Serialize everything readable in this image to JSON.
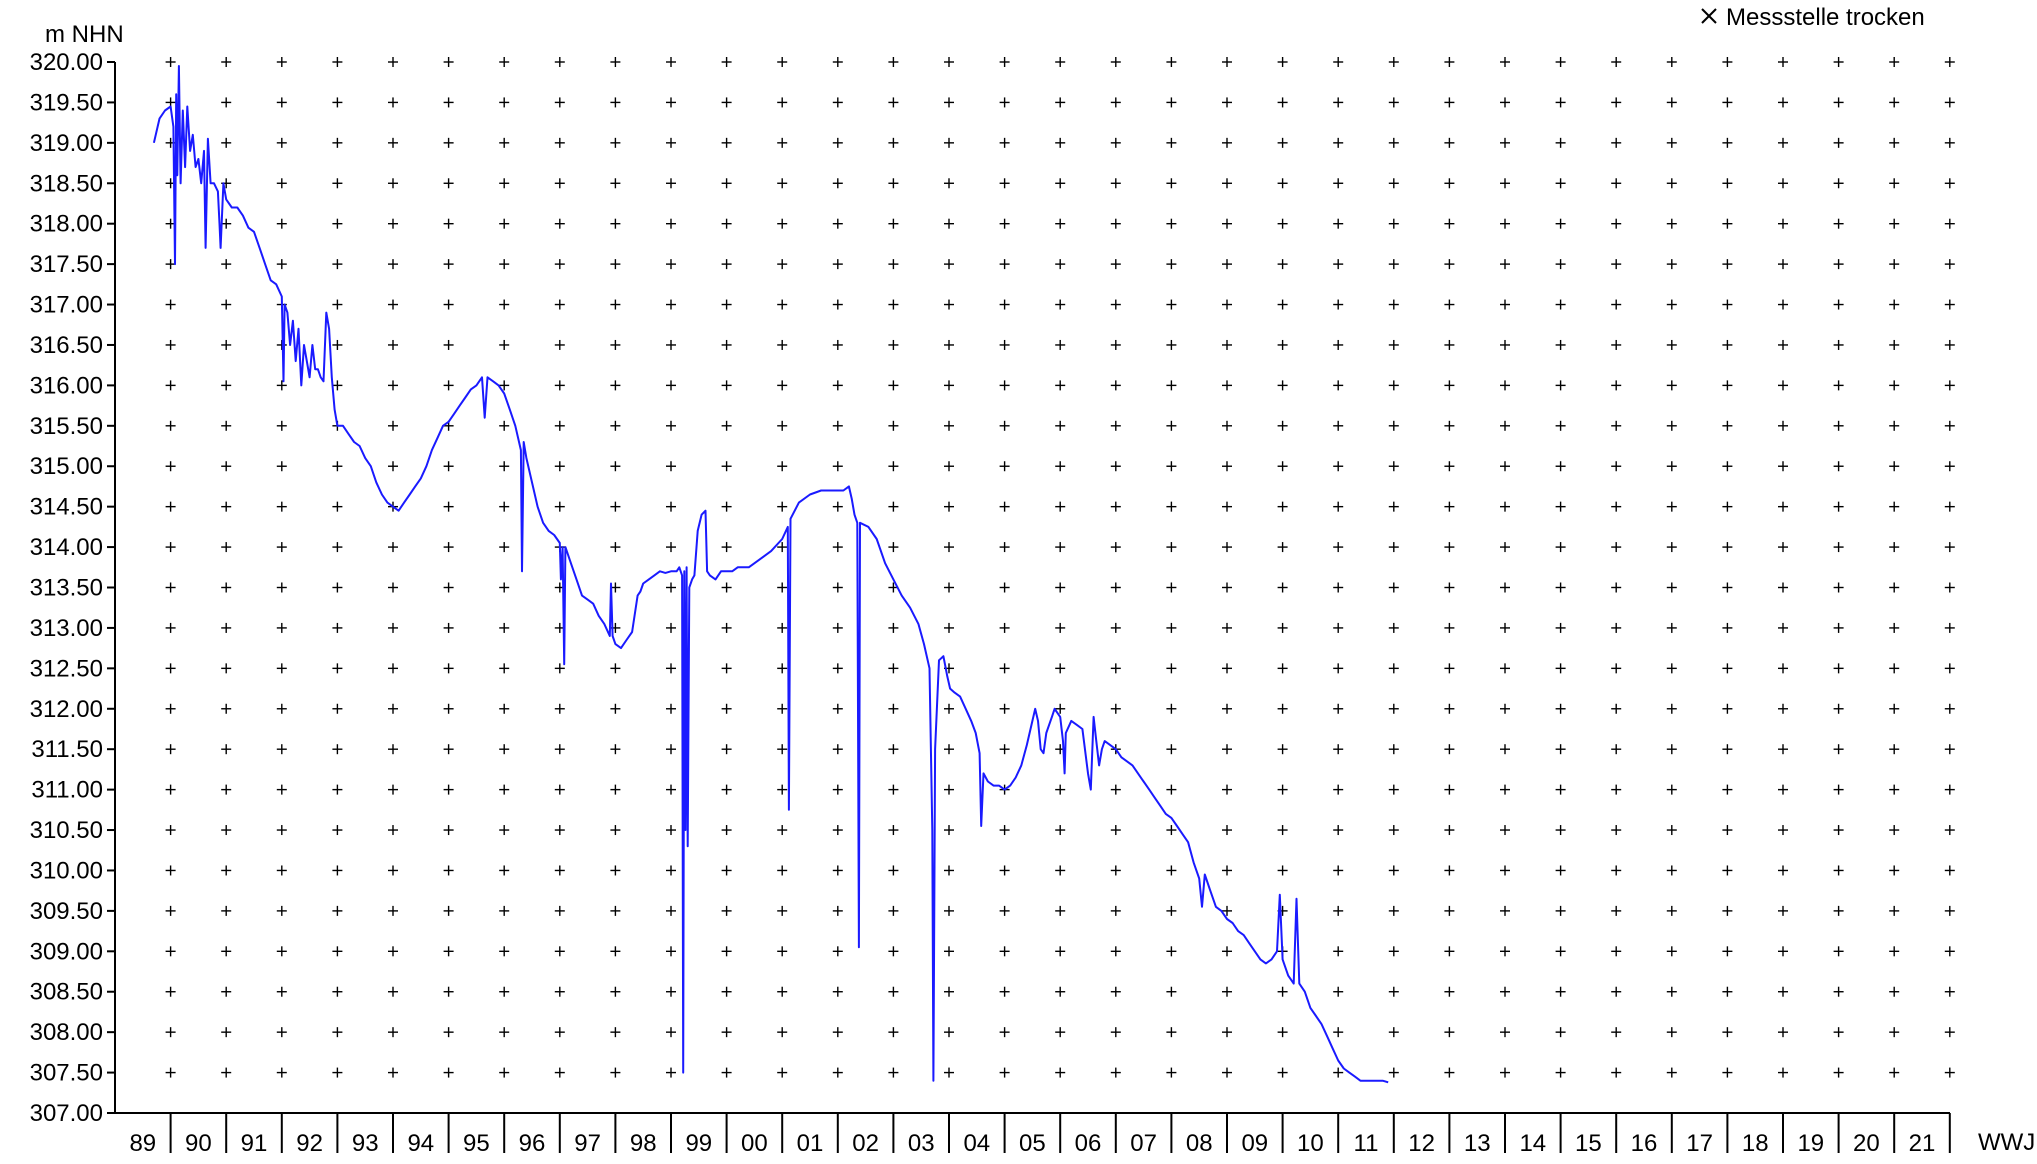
{
  "chart_data": {
    "type": "line",
    "ylabel": "m NHN",
    "xlabel": "WWJ",
    "ylim": [
      307.0,
      320.0
    ],
    "xlim": [
      1989,
      2022
    ],
    "y_ticks": [
      "307.00",
      "307.50",
      "308.00",
      "308.50",
      "309.00",
      "309.50",
      "310.00",
      "310.50",
      "311.00",
      "311.50",
      "312.00",
      "312.50",
      "313.00",
      "313.50",
      "314.00",
      "314.50",
      "315.00",
      "315.50",
      "316.00",
      "316.50",
      "317.00",
      "317.50",
      "318.00",
      "318.50",
      "319.00",
      "319.50",
      "320.00"
    ],
    "x_ticks": [
      "89",
      "90",
      "91",
      "92",
      "93",
      "94",
      "95",
      "96",
      "97",
      "98",
      "99",
      "00",
      "01",
      "02",
      "03",
      "04",
      "05",
      "06",
      "07",
      "08",
      "09",
      "10",
      "11",
      "12",
      "13",
      "14",
      "15",
      "16",
      "17",
      "18",
      "19",
      "20",
      "21"
    ],
    "grid": "plus-markers",
    "legend": {
      "position": "top-right",
      "label": "Messstelle trocken",
      "marker": "x"
    },
    "colors": {
      "series": "#1a1aff",
      "axis": "#000000",
      "grid": "#000000"
    },
    "series": [
      {
        "points": [
          [
            1989.7,
            319.0
          ],
          [
            1989.8,
            319.3
          ],
          [
            1989.9,
            319.4
          ],
          [
            1990.0,
            319.45
          ],
          [
            1990.05,
            319.2
          ],
          [
            1990.08,
            317.5
          ],
          [
            1990.1,
            319.6
          ],
          [
            1990.12,
            318.6
          ],
          [
            1990.15,
            319.95
          ],
          [
            1990.18,
            318.5
          ],
          [
            1990.22,
            319.4
          ],
          [
            1990.26,
            318.7
          ],
          [
            1990.3,
            319.45
          ],
          [
            1990.35,
            318.9
          ],
          [
            1990.4,
            319.1
          ],
          [
            1990.45,
            318.7
          ],
          [
            1990.5,
            318.8
          ],
          [
            1990.55,
            318.5
          ],
          [
            1990.6,
            318.9
          ],
          [
            1990.63,
            317.7
          ],
          [
            1990.67,
            319.05
          ],
          [
            1990.72,
            318.5
          ],
          [
            1990.78,
            318.5
          ],
          [
            1990.85,
            318.4
          ],
          [
            1990.88,
            318.0
          ],
          [
            1990.9,
            317.7
          ],
          [
            1990.95,
            318.5
          ],
          [
            1991.0,
            318.3
          ],
          [
            1991.1,
            318.2
          ],
          [
            1991.2,
            318.2
          ],
          [
            1991.3,
            318.1
          ],
          [
            1991.4,
            317.95
          ],
          [
            1991.5,
            317.9
          ],
          [
            1991.6,
            317.7
          ],
          [
            1991.7,
            317.5
          ],
          [
            1991.8,
            317.3
          ],
          [
            1991.9,
            317.25
          ],
          [
            1992.0,
            317.1
          ],
          [
            1992.03,
            316.05
          ],
          [
            1992.05,
            317.0
          ],
          [
            1992.1,
            316.9
          ],
          [
            1992.15,
            316.5
          ],
          [
            1992.2,
            316.8
          ],
          [
            1992.25,
            316.3
          ],
          [
            1992.3,
            316.7
          ],
          [
            1992.35,
            316.0
          ],
          [
            1992.4,
            316.5
          ],
          [
            1992.45,
            316.3
          ],
          [
            1992.5,
            316.1
          ],
          [
            1992.55,
            316.5
          ],
          [
            1992.6,
            316.2
          ],
          [
            1992.65,
            316.2
          ],
          [
            1992.7,
            316.1
          ],
          [
            1992.75,
            316.05
          ],
          [
            1992.8,
            316.9
          ],
          [
            1992.85,
            316.7
          ],
          [
            1992.9,
            316.1
          ],
          [
            1992.95,
            315.7
          ],
          [
            1993.0,
            315.5
          ],
          [
            1993.1,
            315.5
          ],
          [
            1993.2,
            315.4
          ],
          [
            1993.3,
            315.3
          ],
          [
            1993.4,
            315.25
          ],
          [
            1993.5,
            315.1
          ],
          [
            1993.6,
            315.0
          ],
          [
            1993.7,
            314.8
          ],
          [
            1993.8,
            314.65
          ],
          [
            1993.9,
            314.55
          ],
          [
            1994.0,
            314.5
          ],
          [
            1994.1,
            314.45
          ],
          [
            1994.2,
            314.55
          ],
          [
            1994.3,
            314.65
          ],
          [
            1994.4,
            314.75
          ],
          [
            1994.5,
            314.85
          ],
          [
            1994.6,
            315.0
          ],
          [
            1994.7,
            315.2
          ],
          [
            1994.8,
            315.35
          ],
          [
            1994.9,
            315.5
          ],
          [
            1995.0,
            315.55
          ],
          [
            1995.1,
            315.65
          ],
          [
            1995.2,
            315.75
          ],
          [
            1995.3,
            315.85
          ],
          [
            1995.4,
            315.95
          ],
          [
            1995.5,
            316.0
          ],
          [
            1995.6,
            316.1
          ],
          [
            1995.65,
            315.6
          ],
          [
            1995.7,
            316.1
          ],
          [
            1995.8,
            316.05
          ],
          [
            1995.9,
            316.0
          ],
          [
            1996.0,
            315.9
          ],
          [
            1996.1,
            315.7
          ],
          [
            1996.2,
            315.5
          ],
          [
            1996.3,
            315.2
          ],
          [
            1996.32,
            313.7
          ],
          [
            1996.35,
            315.3
          ],
          [
            1996.4,
            315.1
          ],
          [
            1996.5,
            314.8
          ],
          [
            1996.6,
            314.5
          ],
          [
            1996.7,
            314.3
          ],
          [
            1996.8,
            314.2
          ],
          [
            1996.9,
            314.15
          ],
          [
            1997.0,
            314.05
          ],
          [
            1997.02,
            313.6
          ],
          [
            1997.05,
            314.0
          ],
          [
            1997.08,
            312.55
          ],
          [
            1997.1,
            314.0
          ],
          [
            1997.2,
            313.8
          ],
          [
            1997.3,
            313.6
          ],
          [
            1997.4,
            313.4
          ],
          [
            1997.5,
            313.35
          ],
          [
            1997.6,
            313.3
          ],
          [
            1997.7,
            313.15
          ],
          [
            1997.8,
            313.05
          ],
          [
            1997.9,
            312.9
          ],
          [
            1997.92,
            313.55
          ],
          [
            1997.95,
            312.9
          ],
          [
            1998.0,
            312.8
          ],
          [
            1998.1,
            312.75
          ],
          [
            1998.2,
            312.85
          ],
          [
            1998.3,
            312.95
          ],
          [
            1998.4,
            313.4
          ],
          [
            1998.45,
            313.45
          ],
          [
            1998.5,
            313.55
          ],
          [
            1998.6,
            313.6
          ],
          [
            1998.7,
            313.65
          ],
          [
            1998.8,
            313.7
          ],
          [
            1998.9,
            313.68
          ],
          [
            1999.0,
            313.7
          ],
          [
            1999.1,
            313.7
          ],
          [
            1999.15,
            313.75
          ],
          [
            1999.2,
            313.65
          ],
          [
            1999.22,
            307.5
          ],
          [
            1999.24,
            313.7
          ],
          [
            1999.26,
            310.5
          ],
          [
            1999.28,
            313.75
          ],
          [
            1999.3,
            310.3
          ],
          [
            1999.33,
            313.5
          ],
          [
            1999.38,
            313.6
          ],
          [
            1999.42,
            313.65
          ],
          [
            1999.48,
            314.2
          ],
          [
            1999.55,
            314.4
          ],
          [
            1999.62,
            314.45
          ],
          [
            1999.65,
            313.7
          ],
          [
            1999.7,
            313.65
          ],
          [
            1999.8,
            313.6
          ],
          [
            1999.9,
            313.7
          ],
          [
            2000.0,
            313.7
          ],
          [
            2000.1,
            313.7
          ],
          [
            2000.2,
            313.75
          ],
          [
            2000.4,
            313.75
          ],
          [
            2000.6,
            313.85
          ],
          [
            2000.8,
            313.95
          ],
          [
            2001.0,
            314.1
          ],
          [
            2001.1,
            314.25
          ],
          [
            2001.12,
            310.75
          ],
          [
            2001.15,
            314.35
          ],
          [
            2001.3,
            314.55
          ],
          [
            2001.5,
            314.65
          ],
          [
            2001.7,
            314.7
          ],
          [
            2001.9,
            314.7
          ],
          [
            2002.1,
            314.7
          ],
          [
            2002.2,
            314.75
          ],
          [
            2002.25,
            314.6
          ],
          [
            2002.3,
            314.4
          ],
          [
            2002.35,
            314.3
          ],
          [
            2002.38,
            309.05
          ],
          [
            2002.4,
            314.3
          ],
          [
            2002.55,
            314.25
          ],
          [
            2002.7,
            314.1
          ],
          [
            2002.85,
            313.8
          ],
          [
            2003.0,
            313.6
          ],
          [
            2003.15,
            313.4
          ],
          [
            2003.3,
            313.25
          ],
          [
            2003.45,
            313.05
          ],
          [
            2003.55,
            312.8
          ],
          [
            2003.65,
            312.5
          ],
          [
            2003.7,
            310.5
          ],
          [
            2003.72,
            307.4
          ],
          [
            2003.75,
            311.5
          ],
          [
            2003.82,
            312.6
          ],
          [
            2003.9,
            312.65
          ],
          [
            2003.97,
            312.4
          ],
          [
            2004.02,
            312.25
          ],
          [
            2004.1,
            312.2
          ],
          [
            2004.2,
            312.15
          ],
          [
            2004.3,
            312.0
          ],
          [
            2004.4,
            311.85
          ],
          [
            2004.48,
            311.7
          ],
          [
            2004.55,
            311.45
          ],
          [
            2004.58,
            310.55
          ],
          [
            2004.62,
            311.2
          ],
          [
            2004.7,
            311.1
          ],
          [
            2004.8,
            311.05
          ],
          [
            2004.9,
            311.05
          ],
          [
            2005.0,
            311.0
          ],
          [
            2005.1,
            311.05
          ],
          [
            2005.2,
            311.15
          ],
          [
            2005.3,
            311.3
          ],
          [
            2005.4,
            311.55
          ],
          [
            2005.5,
            311.85
          ],
          [
            2005.55,
            312.0
          ],
          [
            2005.6,
            311.85
          ],
          [
            2005.65,
            311.5
          ],
          [
            2005.7,
            311.45
          ],
          [
            2005.75,
            311.7
          ],
          [
            2005.8,
            311.8
          ],
          [
            2005.85,
            311.9
          ],
          [
            2005.9,
            312.0
          ],
          [
            2006.0,
            311.9
          ],
          [
            2006.05,
            311.6
          ],
          [
            2006.08,
            311.2
          ],
          [
            2006.1,
            311.7
          ],
          [
            2006.2,
            311.85
          ],
          [
            2006.3,
            311.8
          ],
          [
            2006.4,
            311.75
          ],
          [
            2006.5,
            311.2
          ],
          [
            2006.55,
            311.0
          ],
          [
            2006.6,
            311.9
          ],
          [
            2006.65,
            311.6
          ],
          [
            2006.7,
            311.3
          ],
          [
            2006.75,
            311.5
          ],
          [
            2006.8,
            311.6
          ],
          [
            2006.9,
            311.55
          ],
          [
            2007.0,
            311.5
          ],
          [
            2007.1,
            311.4
          ],
          [
            2007.2,
            311.35
          ],
          [
            2007.3,
            311.3
          ],
          [
            2007.4,
            311.2
          ],
          [
            2007.5,
            311.1
          ],
          [
            2007.6,
            311.0
          ],
          [
            2007.7,
            310.9
          ],
          [
            2007.8,
            310.8
          ],
          [
            2007.9,
            310.7
          ],
          [
            2008.0,
            310.65
          ],
          [
            2008.1,
            310.55
          ],
          [
            2008.2,
            310.45
          ],
          [
            2008.3,
            310.35
          ],
          [
            2008.4,
            310.1
          ],
          [
            2008.5,
            309.9
          ],
          [
            2008.55,
            309.55
          ],
          [
            2008.6,
            309.95
          ],
          [
            2008.7,
            309.75
          ],
          [
            2008.8,
            309.55
          ],
          [
            2008.9,
            309.5
          ],
          [
            2009.0,
            309.4
          ],
          [
            2009.1,
            309.35
          ],
          [
            2009.2,
            309.25
          ],
          [
            2009.3,
            309.2
          ],
          [
            2009.4,
            309.1
          ],
          [
            2009.5,
            309.0
          ],
          [
            2009.6,
            308.9
          ],
          [
            2009.7,
            308.85
          ],
          [
            2009.8,
            308.9
          ],
          [
            2009.9,
            309.0
          ],
          [
            2009.95,
            309.7
          ],
          [
            2010.0,
            308.9
          ],
          [
            2010.1,
            308.7
          ],
          [
            2010.2,
            308.6
          ],
          [
            2010.25,
            309.65
          ],
          [
            2010.3,
            308.6
          ],
          [
            2010.4,
            308.5
          ],
          [
            2010.5,
            308.3
          ],
          [
            2010.6,
            308.2
          ],
          [
            2010.7,
            308.1
          ],
          [
            2010.8,
            307.95
          ],
          [
            2010.9,
            307.8
          ],
          [
            2011.0,
            307.65
          ],
          [
            2011.1,
            307.55
          ],
          [
            2011.2,
            307.5
          ],
          [
            2011.3,
            307.45
          ],
          [
            2011.4,
            307.4
          ],
          [
            2011.5,
            307.4
          ],
          [
            2011.6,
            307.4
          ],
          [
            2011.7,
            307.4
          ],
          [
            2011.8,
            307.4
          ],
          [
            2011.9,
            307.38
          ]
        ]
      }
    ]
  }
}
